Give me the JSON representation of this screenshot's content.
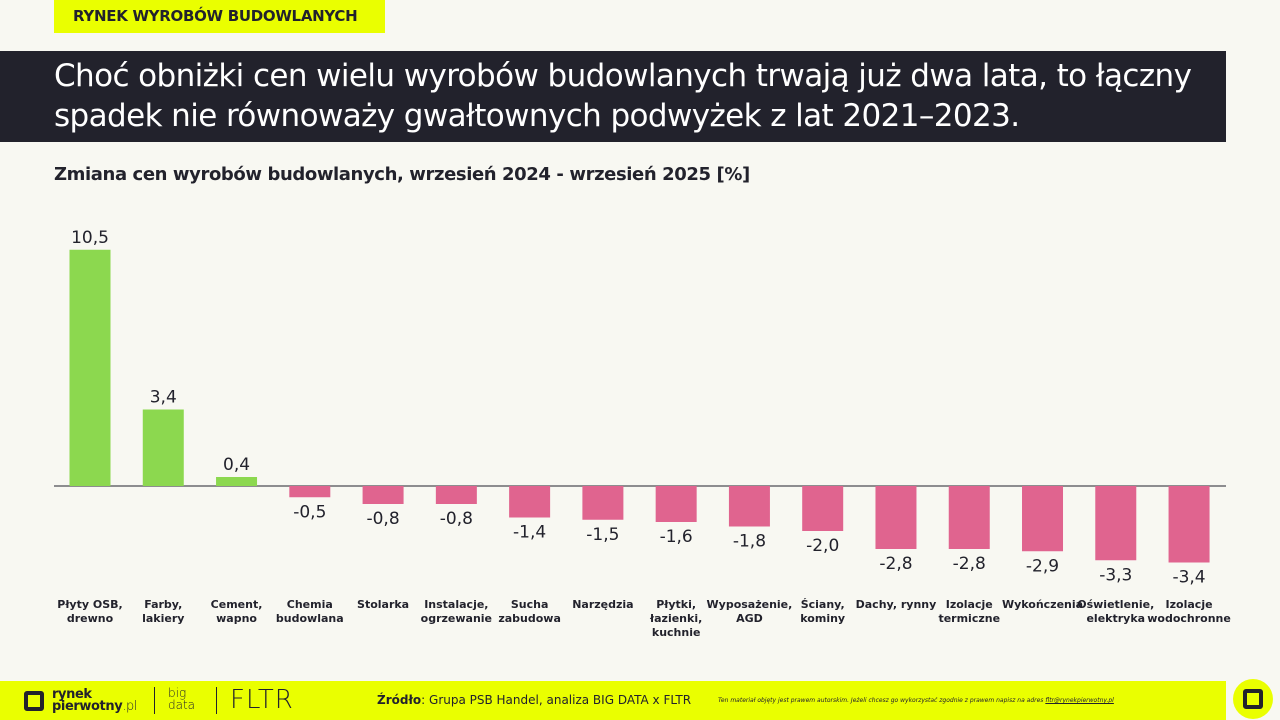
{
  "header": {
    "tag": "RYNEK WYROBÓW BUDOWLANYCH",
    "title": "Choć obniżki cen wielu wyrobów budowlanych trwają już dwa lata, to łączny spadek nie równoważy gwałtownych podwyżek z lat 2021–2023."
  },
  "chart_data": {
    "type": "bar",
    "title": "Zmiana cen wyrobów budowlanych, wrzesień 2024 - wrzesień 2025 [%]",
    "categories": [
      "Płyty OSB, drewno",
      "Farby, lakiery",
      "Cement, wapno",
      "Chemia budowlana",
      "Stolarka",
      "Instalacje, ogrzewanie",
      "Sucha zabudowa",
      "Narzędzia",
      "Płytki, łazienki, kuchnie",
      "Wyposażenie, AGD",
      "Ściany, kominy",
      "Dachy, rynny",
      "Izolacje termiczne",
      "Wykończenia",
      "Oświetlenie, elektryka",
      "Izolacje wodochronne"
    ],
    "values": [
      10.5,
      3.4,
      0.4,
      -0.5,
      -0.8,
      -0.8,
      -1.4,
      -1.5,
      -1.6,
      -1.8,
      -2.0,
      -2.8,
      -2.8,
      -2.9,
      -3.3,
      -3.4
    ],
    "data_labels": [
      "10,5",
      "3,4",
      "0,4",
      "-0,5",
      "-0,8",
      "-0,8",
      "-1,4",
      "-1,5",
      "-1,6",
      "-1,8",
      "-2,0",
      "-2,8",
      "-2,8",
      "-2,9",
      "-3,3",
      "-3,4"
    ],
    "colors": {
      "positive": "#8cd84f",
      "negative": "#e0648f"
    },
    "grid": false
  },
  "footer": {
    "logo": "rynek pierwotny.pl",
    "logo_line1": "rynek",
    "logo_line2": "pierwotny",
    "logo_suffix": ".pl",
    "bigdata_1": "big",
    "bigdata_2": "data",
    "fltr": "FLTR",
    "source_label": "Źródło",
    "source_text": ": Grupa PSB Handel, analiza BIG DATA x FLTR",
    "disclaimer": "Ten materiał objęty jest prawem autorskim. Jeżeli chcesz go wykorzystać zgodnie z prawem napisz na adres ",
    "disclaimer_email": "fltr@rynekpierwotny.pl"
  }
}
